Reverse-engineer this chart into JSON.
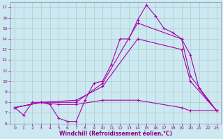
{
  "title": "",
  "xlabel": "Windchill (Refroidissement éolien,°C)",
  "ylabel": "",
  "bg_color": "#cce8f0",
  "grid_color": "#aacccc",
  "line_color": "#aa00aa",
  "xlim": [
    -0.5,
    23.5
  ],
  "ylim": [
    6,
    17.5
  ],
  "xticks": [
    0,
    1,
    2,
    3,
    4,
    5,
    6,
    7,
    8,
    9,
    10,
    11,
    12,
    13,
    14,
    15,
    16,
    17,
    18,
    19,
    20,
    21,
    22,
    23
  ],
  "yticks": [
    6,
    7,
    8,
    9,
    10,
    11,
    12,
    13,
    14,
    15,
    16,
    17
  ],
  "series": [
    {
      "x": [
        0,
        1,
        2,
        3,
        4,
        5,
        6,
        7,
        8,
        9,
        10,
        11,
        12,
        13,
        14,
        15,
        16,
        17,
        18,
        19,
        20,
        21,
        22,
        23
      ],
      "y": [
        7.5,
        6.8,
        8.0,
        8.0,
        7.8,
        6.5,
        6.2,
        6.2,
        8.2,
        9.8,
        10.0,
        11.6,
        14.0,
        14.0,
        15.8,
        17.2,
        16.2,
        15.0,
        14.6,
        14.0,
        12.5,
        9.3,
        8.2,
        7.2
      ],
      "marker": "+"
    },
    {
      "x": [
        0,
        3,
        7,
        10,
        14,
        19,
        20,
        23
      ],
      "y": [
        7.5,
        8.0,
        8.0,
        9.8,
        15.5,
        14.0,
        10.5,
        7.2
      ],
      "marker": "+"
    },
    {
      "x": [
        0,
        3,
        7,
        10,
        14,
        19,
        20,
        23
      ],
      "y": [
        7.5,
        8.0,
        8.2,
        9.5,
        14.0,
        13.0,
        10.0,
        7.2
      ],
      "marker": "+"
    },
    {
      "x": [
        0,
        3,
        5,
        7,
        10,
        14,
        19,
        20,
        23
      ],
      "y": [
        7.5,
        8.0,
        7.8,
        7.8,
        8.2,
        8.2,
        7.5,
        7.2,
        7.2
      ],
      "marker": "+"
    }
  ]
}
